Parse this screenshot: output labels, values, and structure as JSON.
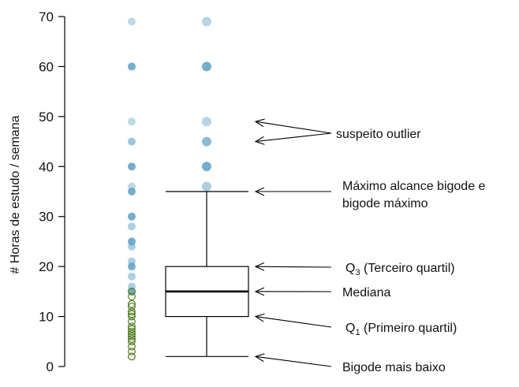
{
  "chart_data": {
    "type": "boxplot",
    "ylabel": "# Horas de estudo / semana",
    "ylim": [
      0,
      70
    ],
    "yticks": [
      0,
      10,
      20,
      30,
      40,
      50,
      60,
      70
    ],
    "grid": false,
    "colors": {
      "point_solid": "#5aa0c4",
      "point_outline": "#4d7a1a",
      "box": "#000000"
    },
    "dot_strip": {
      "outlined_values": [
        2,
        3,
        4,
        5,
        5.5,
        6,
        6.5,
        7,
        7.5,
        8,
        9,
        10,
        10.5,
        11,
        12,
        12.5,
        14,
        15
      ],
      "solid_values": [
        {
          "value": 15,
          "opacity": 0.85
        },
        {
          "value": 16,
          "opacity": 0.5
        },
        {
          "value": 18,
          "opacity": 0.5
        },
        {
          "value": 20,
          "opacity": 0.85
        },
        {
          "value": 21,
          "opacity": 0.5
        },
        {
          "value": 24,
          "opacity": 0.5
        },
        {
          "value": 25,
          "opacity": 0.85
        },
        {
          "value": 28,
          "opacity": 0.5
        },
        {
          "value": 30,
          "opacity": 0.85
        },
        {
          "value": 35,
          "opacity": 0.85
        },
        {
          "value": 36,
          "opacity": 0.4
        },
        {
          "value": 40,
          "opacity": 0.85
        },
        {
          "value": 45,
          "opacity": 0.6
        },
        {
          "value": 49,
          "opacity": 0.4
        },
        {
          "value": 60,
          "opacity": 0.85
        },
        {
          "value": 69,
          "opacity": 0.4
        }
      ]
    },
    "box": {
      "lower_whisker": 2,
      "q1": 10,
      "median": 15,
      "q3": 20,
      "upper_whisker": 35,
      "outliers": [
        {
          "value": 36,
          "opacity": 0.5
        },
        {
          "value": 40,
          "opacity": 0.85
        },
        {
          "value": 45,
          "opacity": 0.7
        },
        {
          "value": 49,
          "opacity": 0.45
        },
        {
          "value": 60,
          "opacity": 0.85
        },
        {
          "value": 69,
          "opacity": 0.45
        }
      ]
    },
    "annotations": [
      {
        "lines": [
          "suspeito outlier"
        ],
        "targets": [
          49,
          45
        ]
      },
      {
        "lines": [
          "Máximo alcance bigode e",
          "bigode máximo"
        ],
        "targets": [
          35
        ]
      },
      {
        "main": "Q",
        "sub": "3",
        "rest": " (Terceiro quartil)",
        "targets": [
          20
        ]
      },
      {
        "lines": [
          "Mediana"
        ],
        "targets": [
          15
        ]
      },
      {
        "main": "Q",
        "sub": "1",
        "rest": " (Primeiro quartil)",
        "targets": [
          10
        ]
      },
      {
        "lines": [
          "Bigode mais baixo"
        ],
        "targets": [
          2
        ]
      }
    ]
  }
}
